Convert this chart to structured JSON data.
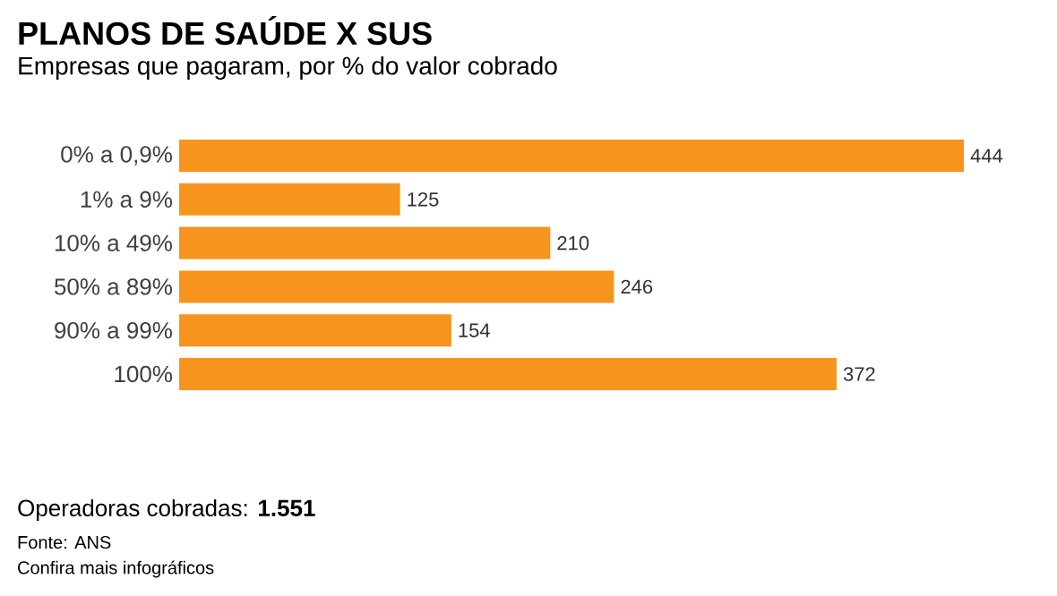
{
  "chart_data": {
    "type": "bar",
    "orientation": "horizontal",
    "title": "PLANOS DE SAÚDE X SUS",
    "subtitle": "Empresas que pagaram, por % do valor cobrado",
    "categories": [
      "0% a 0,9%",
      "1% a 9%",
      "10% a 49%",
      "50% a 89%",
      "90% a 99%",
      "100%"
    ],
    "values": [
      444,
      125,
      210,
      246,
      154,
      372
    ],
    "color": "#f7941d",
    "data_labels": true,
    "tick_labels": "y",
    "annotations": [
      "Operadoras cobradas: **1.551**",
      "Fonte: ANS",
      "Confira mais infográficos"
    ]
  }
}
